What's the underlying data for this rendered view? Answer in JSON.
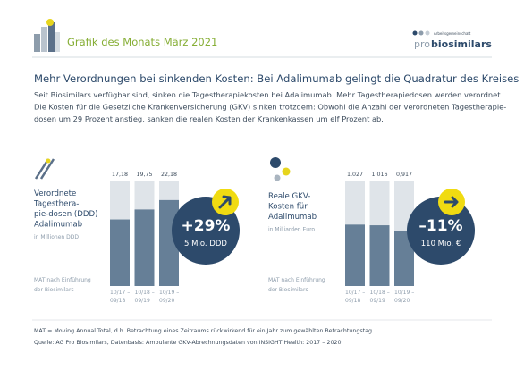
{
  "header": {
    "title": "Grafik des Monats März 2021",
    "logo_small": "Arbeitsgemeinschaft",
    "logo_pro": "pro",
    "logo_main": "biosimilars"
  },
  "headline": "Mehr Verordnungen bei sinkenden Kosten: Bei Adalimumab gelingt die Quadratur des Kreises",
  "intro": [
    "Seit Biosimilars verfügbar sind, sinken die Tagestherapiekosten bei Adalimumab. Mehr Tagestherapiedosen werden verordnet.",
    "Die Kosten für die Gesetzliche Krankenversicherung (GKV) sinken trotzdem: Obwohl die Anzahl der verordneten Tagestherapie-",
    "dosen um 29 Prozent anstieg, sanken die realen Kosten der Krankenkassen um elf Prozent ab."
  ],
  "chart_data": [
    {
      "type": "bar",
      "title": [
        "Verordnete",
        "Tagesthera-",
        "pie-dosen (DDD)",
        "Adalimumab"
      ],
      "unit": "in Millionen DDD",
      "axis_note": [
        "MAT nach Einführung",
        "der Biosimilars"
      ],
      "categories": [
        [
          "10/17 –",
          "09/18"
        ],
        [
          "10/18 –",
          "09/19"
        ],
        [
          "10/19 –",
          "09/20"
        ]
      ],
      "values": [
        17.18,
        19.75,
        22.18
      ],
      "value_labels": [
        "17,18",
        "19,75",
        "22,18"
      ],
      "color": "#667f97",
      "ylim": [
        0,
        27
      ],
      "annotation": {
        "value": "+29%",
        "label": "5 Mio. DDD"
      }
    },
    {
      "type": "bar",
      "title": [
        "Reale GKV-",
        "Kosten für",
        "Adalimumab"
      ],
      "unit": "in Milliarden Euro",
      "axis_note": [
        "MAT nach Einführung",
        "der Biosimilars"
      ],
      "categories": [
        [
          "10/17 –",
          "09/18"
        ],
        [
          "10/18 –",
          "09/19"
        ],
        [
          "10/19 –",
          "09/20"
        ]
      ],
      "values": [
        1.027,
        1.016,
        0.917
      ],
      "value_labels": [
        "1,027",
        "1,016",
        "0,917"
      ],
      "color": "#667f97",
      "ylim": [
        0,
        1.75
      ],
      "annotation": {
        "value": "–11%",
        "label": "110 Mio. €"
      }
    }
  ],
  "footnotes": [
    "MAT = Moving Annual Total, d.h. Betrachtung eines Zeitraums rückwirkend für ein Jahr zum gewählten Betrachtungstag",
    "Quelle: AG Pro Biosimilars, Datenbasis: Ambulante GKV-Abrechnungsdaten von INSIGHT Health: 2017 – 2020"
  ]
}
